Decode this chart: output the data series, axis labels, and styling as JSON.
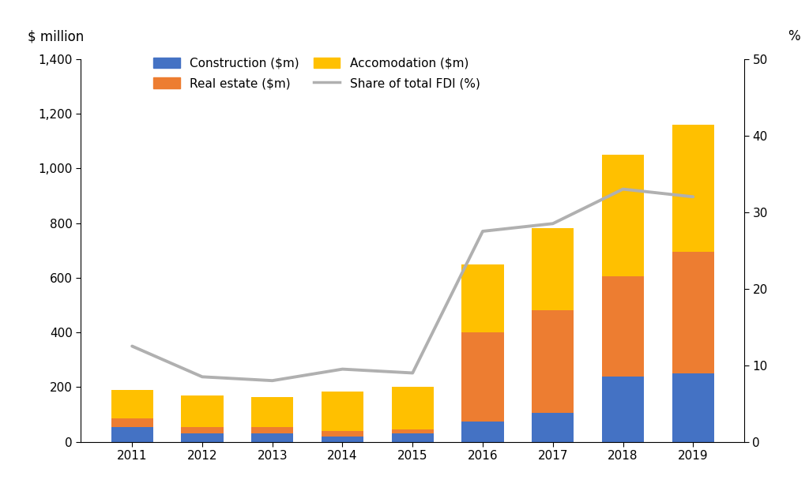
{
  "years": [
    2011,
    2012,
    2013,
    2014,
    2015,
    2016,
    2017,
    2018,
    2019
  ],
  "construction": [
    55,
    30,
    30,
    20,
    30,
    75,
    105,
    240,
    250
  ],
  "real_estate": [
    30,
    25,
    25,
    20,
    15,
    325,
    375,
    365,
    445
  ],
  "accommodation": [
    105,
    115,
    110,
    145,
    155,
    250,
    300,
    445,
    465
  ],
  "fdi_share": [
    12.5,
    8.5,
    8.0,
    9.5,
    9.0,
    27.5,
    28.5,
    33.0,
    32.0
  ],
  "bar_colors": {
    "construction": "#4472c4",
    "real_estate": "#ed7d31",
    "accommodation": "#ffc000"
  },
  "line_color": "#b0b0b0",
  "ylim_left": [
    0,
    1400
  ],
  "ylim_right": [
    0,
    50
  ],
  "yticks_left": [
    0,
    200,
    400,
    600,
    800,
    1000,
    1200,
    1400
  ],
  "yticks_right": [
    0,
    10,
    20,
    30,
    40,
    50
  ],
  "ylabel_left": "$ million",
  "ylabel_right": "%",
  "legend_labels": [
    "Construction ($m)",
    "Real estate ($m)",
    "Accomodation ($m)",
    "Share of total FDI (%)"
  ],
  "background_color": "#ffffff",
  "bar_width": 0.6
}
